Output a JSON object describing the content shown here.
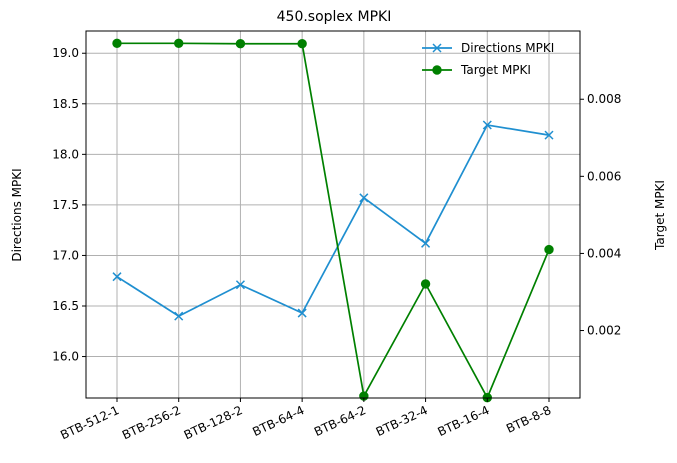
{
  "chart_data": {
    "type": "line",
    "title": "450.soplex MPKI",
    "xlabel": "",
    "ylabel_left": "Directions MPKI",
    "ylabel_right": "Target MPKI",
    "categories": [
      "BTB-512-1",
      "BTB-256-2",
      "BTB-128-2",
      "BTB-64-4",
      "BTB-64-2",
      "BTB-32-4",
      "BTB-16-4",
      "BTB-8-8"
    ],
    "ylim_left": [
      15.59,
      19.22
    ],
    "yticks_left": [
      "16.0",
      "16.5",
      "17.0",
      "17.5",
      "18.0",
      "18.5",
      "19.0"
    ],
    "ylim_right": [
      0.00025,
      0.00977
    ],
    "yticks_right": [
      "0.002",
      "0.004",
      "0.006",
      "0.008"
    ],
    "grid": true,
    "legend_position": "top-right",
    "series": [
      {
        "name": "Directions MPKI",
        "axis": "left",
        "marker": "x",
        "color": "#1f8fd0",
        "values": [
          16.79,
          16.4,
          16.71,
          16.43,
          17.57,
          17.12,
          18.29,
          18.19
        ]
      },
      {
        "name": "Target MPKI",
        "axis": "right",
        "marker": "o",
        "color": "#008000",
        "values": [
          0.00945,
          0.00945,
          0.00944,
          0.00944,
          0.0003,
          0.00321,
          0.00026,
          0.0041
        ]
      }
    ]
  }
}
